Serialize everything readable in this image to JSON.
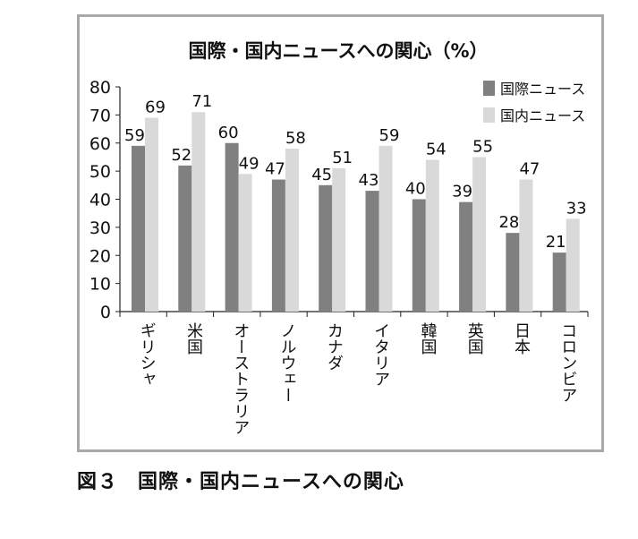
{
  "chart_data": {
    "type": "bar",
    "title": "国際・国内ニュースへの関心（%）",
    "categories": [
      "ギリシャ",
      "米国",
      "オーストラリア",
      "ノルウェー",
      "カナダ",
      "イタリア",
      "韓国",
      "英国",
      "日本",
      "コロンビア"
    ],
    "series": [
      {
        "name": "国際ニュース",
        "color": "#808080",
        "values": [
          59,
          52,
          60,
          47,
          45,
          43,
          40,
          39,
          28,
          21
        ]
      },
      {
        "name": "国内ニュース",
        "color": "#d9d9d9",
        "values": [
          69,
          71,
          49,
          58,
          51,
          59,
          54,
          55,
          47,
          33
        ]
      }
    ],
    "ylim": [
      0,
      80
    ],
    "yticks": [
      0,
      10,
      20,
      30,
      40,
      50,
      60,
      70,
      80
    ],
    "legend": "top-right",
    "grid": false
  },
  "caption": {
    "label": "図３",
    "text": "国際・国内ニュースへの関心"
  }
}
